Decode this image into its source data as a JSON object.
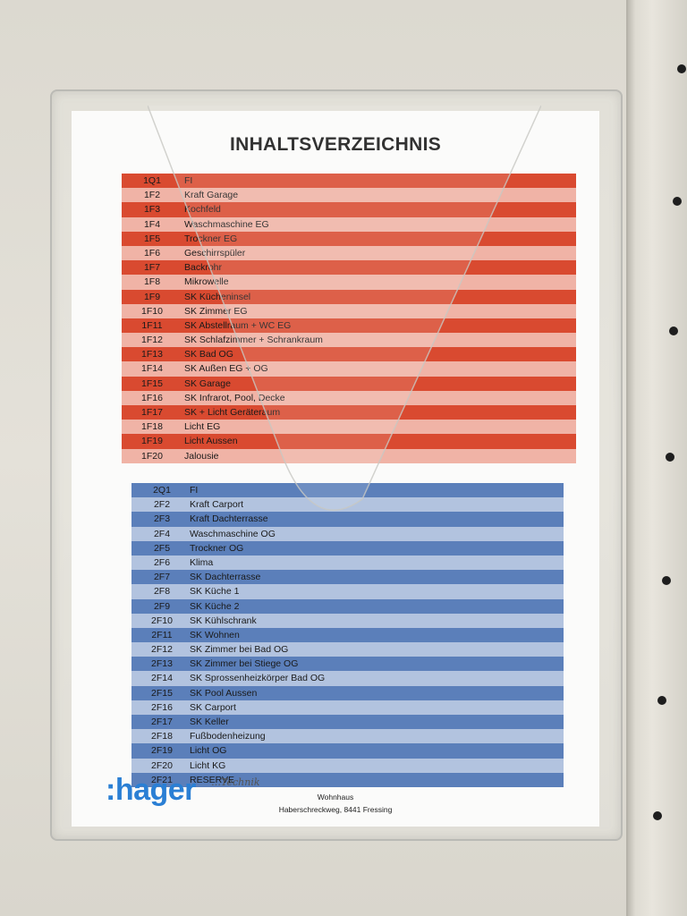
{
  "document": {
    "title": "INHALTSVERZEICHNIS",
    "red_rows": [
      {
        "code": "1Q1",
        "desc": "FI"
      },
      {
        "code": "1F2",
        "desc": "Kraft Garage"
      },
      {
        "code": "1F3",
        "desc": "Kochfeld"
      },
      {
        "code": "1F4",
        "desc": "Waschmaschine EG"
      },
      {
        "code": "1F5",
        "desc": "Trockner EG"
      },
      {
        "code": "1F6",
        "desc": "Geschirrspüler"
      },
      {
        "code": "1F7",
        "desc": "Backrohr"
      },
      {
        "code": "1F8",
        "desc": "Mikrowelle"
      },
      {
        "code": "1F9",
        "desc": "SK Kücheninsel"
      },
      {
        "code": "1F10",
        "desc": "SK Zimmer EG"
      },
      {
        "code": "1F11",
        "desc": "SK Abstellraum + WC EG"
      },
      {
        "code": "1F12",
        "desc": "SK Schlafzimmer + Schrankraum"
      },
      {
        "code": "1F13",
        "desc": "SK Bad OG"
      },
      {
        "code": "1F14",
        "desc": "SK Außen EG + OG"
      },
      {
        "code": "1F15",
        "desc": "SK Garage"
      },
      {
        "code": "1F16",
        "desc": "SK Infrarot, Pool, Decke"
      },
      {
        "code": "1F17",
        "desc": "SK + Licht Geräteraum"
      },
      {
        "code": "1F18",
        "desc": "Licht EG"
      },
      {
        "code": "1F19",
        "desc": "Licht Aussen"
      },
      {
        "code": "1F20",
        "desc": "Jalousie"
      }
    ],
    "blue_rows": [
      {
        "code": "2Q1",
        "desc": "FI"
      },
      {
        "code": "2F2",
        "desc": "Kraft Carport"
      },
      {
        "code": "2F3",
        "desc": "Kraft Dachterrasse"
      },
      {
        "code": "2F4",
        "desc": "Waschmaschine OG"
      },
      {
        "code": "2F5",
        "desc": "Trockner OG"
      },
      {
        "code": "2F6",
        "desc": "Klima"
      },
      {
        "code": "2F7",
        "desc": "SK Dachterrasse"
      },
      {
        "code": "2F8",
        "desc": "SK Küche 1"
      },
      {
        "code": "2F9",
        "desc": "SK Küche 2"
      },
      {
        "code": "2F10",
        "desc": "SK Kühlschrank"
      },
      {
        "code": "2F11",
        "desc": "SK Wohnen"
      },
      {
        "code": "2F12",
        "desc": "SK Zimmer bei Bad OG"
      },
      {
        "code": "2F13",
        "desc": "SK Zimmer bei Stiege OG"
      },
      {
        "code": "2F14",
        "desc": "SK Sprossenheizkörper Bad OG"
      },
      {
        "code": "2F15",
        "desc": "SK Pool Aussen"
      },
      {
        "code": "2F16",
        "desc": "SK Carport"
      },
      {
        "code": "2F17",
        "desc": "SK Keller"
      },
      {
        "code": "2F18",
        "desc": "Fußbodenheizung"
      },
      {
        "code": "2F19",
        "desc": "Licht OG"
      },
      {
        "code": "2F20",
        "desc": "Licht KG"
      },
      {
        "code": "2F21",
        "desc": "RESERVE"
      }
    ],
    "logo_text": ":hager",
    "handwritten_note": "…Technik",
    "footer_line1": "Wohnhaus",
    "footer_line2": "Haberschreckweg, 8441 Fressing"
  },
  "colors": {
    "red_dark": "#d94a30",
    "red_light": "#f0b3a6",
    "blue_dark": "#5b7fba",
    "blue_light": "#b2c3df",
    "logo_blue": "#2a7fd4"
  }
}
